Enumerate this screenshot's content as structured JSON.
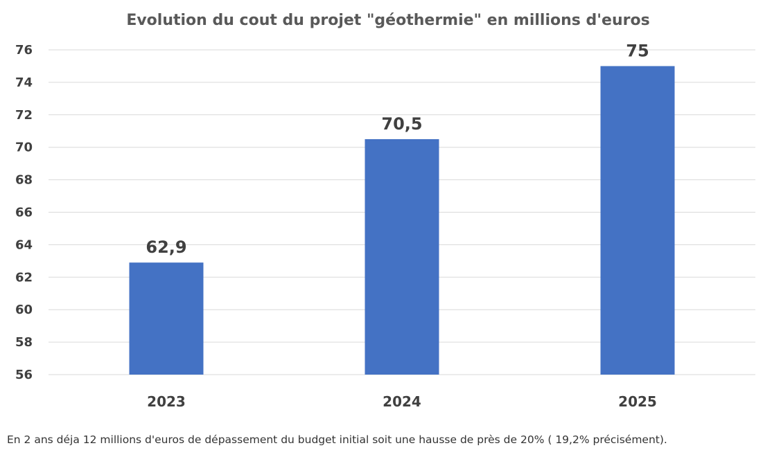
{
  "chart_data": {
    "type": "bar",
    "title": "Evolution du cout du projet \"géothermie\" en millions d'euros",
    "xlabel": "",
    "ylabel": "",
    "categories": [
      "2023",
      "2024",
      "2025"
    ],
    "values": [
      62.9,
      70.5,
      75
    ],
    "data_labels": [
      "62,9",
      "70,5",
      "75"
    ],
    "ylim": [
      56,
      76
    ],
    "yticks": [
      "56",
      "58",
      "60",
      "62",
      "64",
      "66",
      "68",
      "70",
      "72",
      "74",
      "76"
    ],
    "grid": true,
    "legend": "none",
    "bar_color": "#4472C4",
    "grid_color": "#D9D9D9"
  },
  "caption": "En 2 ans déja 12 millions d'euros de dépassement du budget initial soit une hausse de près de 20% ( 19,2% précisément)."
}
